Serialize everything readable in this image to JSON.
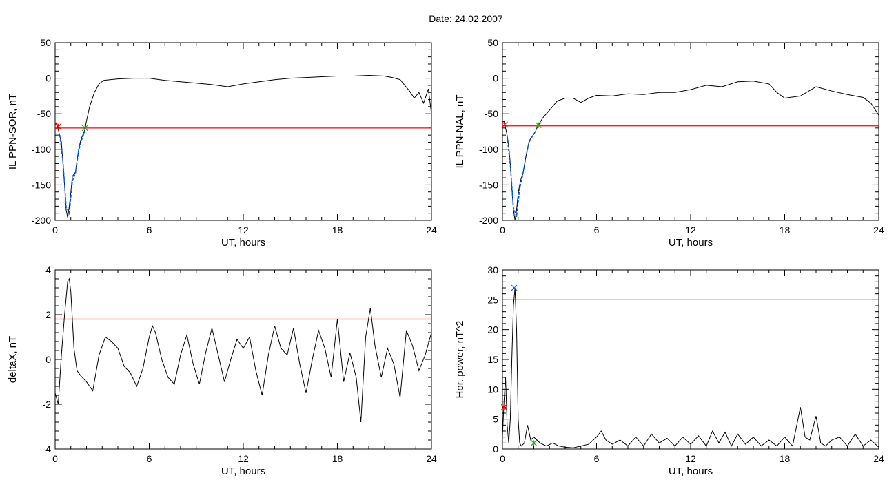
{
  "header": {
    "date_label": "Date:  24.02.2007"
  },
  "colors": {
    "line": "#000000",
    "threshold": "#ff0000",
    "fit": "#0055ff",
    "start_marker": "#ff0000",
    "end_marker": "#22aa22",
    "peak_marker": "#2255ff"
  },
  "chart_data": [
    {
      "type": "line",
      "ylabel": "IL PPN-SOR, nT",
      "xlabel": "UT, hours",
      "xlim": [
        0,
        24
      ],
      "ylim": [
        -200,
        50
      ],
      "xticks": [
        0,
        6,
        12,
        18,
        24
      ],
      "yticks": [
        -200,
        -150,
        -100,
        -50,
        0,
        50
      ],
      "threshold": -70,
      "series": [
        {
          "x": [
            0,
            0.1,
            0.2,
            0.3,
            0.4,
            0.5,
            0.6,
            0.7,
            0.8,
            0.9,
            1.0,
            1.1,
            1.2,
            1.3,
            1.4,
            1.5,
            1.6,
            1.7,
            1.8,
            1.9,
            2.0,
            2.2,
            2.5,
            2.8,
            3.1,
            3.5,
            4,
            5,
            6,
            7,
            8,
            9,
            10,
            11,
            12,
            13,
            14,
            15,
            16,
            17,
            18,
            19,
            20,
            21,
            21.5,
            22,
            22.3,
            22.6,
            22.9,
            23.2,
            23.5,
            23.8,
            24
          ],
          "y": [
            -66,
            -62,
            -72,
            -82,
            -90,
            -120,
            -150,
            -185,
            -196,
            -180,
            -160,
            -138,
            -135,
            -132,
            -115,
            -100,
            -90,
            -83,
            -78,
            -72,
            -60,
            -40,
            -20,
            -8,
            -3,
            -2,
            -1,
            0,
            0,
            -3,
            -5,
            -7,
            -9,
            -12,
            -8,
            -5,
            -2,
            0,
            1,
            2,
            3,
            3,
            4,
            3,
            1,
            -2,
            -10,
            -18,
            -28,
            -20,
            -35,
            -15,
            -50
          ]
        },
        {
          "role": "fit",
          "x": [
            0.3,
            0.5,
            0.7,
            0.9,
            1.1,
            1.3,
            1.5,
            1.7,
            1.9
          ],
          "y": [
            -80,
            -118,
            -180,
            -190,
            -145,
            -133,
            -102,
            -86,
            -74
          ]
        }
      ],
      "markers": [
        {
          "x": 0.2,
          "y": -68,
          "kind": "start"
        },
        {
          "x": 1.9,
          "y": -70,
          "kind": "end"
        }
      ]
    },
    {
      "type": "line",
      "ylabel": "IL PPN-NAL, nT",
      "xlabel": "UT, hours",
      "xlim": [
        0,
        24
      ],
      "ylim": [
        -200,
        50
      ],
      "xticks": [
        0,
        6,
        12,
        18,
        24
      ],
      "yticks": [
        -200,
        -150,
        -100,
        -50,
        0,
        50
      ],
      "threshold": -67,
      "series": [
        {
          "x": [
            0,
            0.1,
            0.2,
            0.3,
            0.4,
            0.5,
            0.6,
            0.7,
            0.8,
            0.9,
            1.0,
            1.1,
            1.2,
            1.3,
            1.5,
            1.7,
            1.9,
            2.1,
            2.3,
            2.6,
            3,
            3.5,
            4,
            4.5,
            5,
            5.5,
            6,
            7,
            8,
            9,
            10,
            11,
            12,
            13,
            14,
            15,
            16,
            17,
            17.5,
            18,
            19,
            20,
            21,
            22,
            23,
            23.5,
            24
          ],
          "y": [
            -62,
            -60,
            -70,
            -80,
            -95,
            -120,
            -155,
            -185,
            -200,
            -185,
            -162,
            -150,
            -140,
            -135,
            -110,
            -88,
            -82,
            -75,
            -65,
            -55,
            -45,
            -32,
            -28,
            -28,
            -34,
            -28,
            -24,
            -25,
            -22,
            -23,
            -20,
            -20,
            -16,
            -10,
            -12,
            -5,
            -4,
            -8,
            -20,
            -28,
            -25,
            -12,
            -18,
            -23,
            -27,
            -35,
            -52
          ]
        },
        {
          "role": "fit",
          "x": [
            0.3,
            0.5,
            0.7,
            0.9,
            1.1,
            1.3,
            1.5,
            1.7,
            1.9,
            2.1
          ],
          "y": [
            -82,
            -122,
            -182,
            -195,
            -155,
            -135,
            -110,
            -90,
            -82,
            -75
          ]
        }
      ],
      "markers": [
        {
          "x": 0.15,
          "y": -65,
          "kind": "start"
        },
        {
          "x": 2.3,
          "y": -66,
          "kind": "end"
        }
      ]
    },
    {
      "type": "line",
      "ylabel": "deltaX, nT",
      "xlabel": "UT, hours",
      "xlim": [
        0,
        24
      ],
      "ylim": [
        -4,
        4
      ],
      "xticks": [
        0,
        6,
        12,
        18,
        24
      ],
      "yticks": [
        -4,
        -2,
        0,
        2,
        4
      ],
      "threshold": 1.8,
      "series": [
        {
          "x": [
            0,
            0.2,
            0.4,
            0.6,
            0.8,
            0.9,
            1.0,
            1.2,
            1.4,
            1.6,
            2.0,
            2.4,
            2.8,
            3.2,
            3.6,
            4.0,
            4.4,
            4.8,
            5.2,
            5.6,
            6.0,
            6.2,
            6.4,
            6.8,
            7.2,
            7.6,
            8.0,
            8.4,
            8.8,
            9.2,
            9.6,
            10.0,
            10.4,
            10.8,
            11.2,
            11.6,
            12.0,
            12.4,
            12.8,
            13.2,
            13.6,
            14.0,
            14.4,
            14.8,
            15.2,
            15.6,
            16.0,
            16.4,
            16.8,
            17.2,
            17.6,
            18.0,
            18.4,
            18.8,
            19.2,
            19.5,
            19.8,
            20.1,
            20.4,
            20.8,
            21.2,
            21.6,
            22.0,
            22.4,
            22.8,
            23.2,
            23.6,
            24
          ],
          "y": [
            -1.5,
            -2.0,
            0.2,
            2.0,
            3.5,
            3.6,
            3.0,
            0.5,
            -0.5,
            -0.7,
            -1.0,
            -1.4,
            0.2,
            1.0,
            0.8,
            0.5,
            -0.3,
            -0.6,
            -1.2,
            -0.4,
            1.0,
            1.5,
            1.2,
            0.0,
            -0.8,
            -1.1,
            0.2,
            1.1,
            -0.2,
            -1.1,
            0.3,
            1.4,
            0.2,
            -1.0,
            0.0,
            0.9,
            0.5,
            1.0,
            -0.5,
            -1.6,
            0.2,
            1.5,
            0.5,
            0.2,
            1.4,
            -0.2,
            -1.5,
            0.0,
            1.3,
            0.5,
            -0.8,
            1.8,
            -1.0,
            0.3,
            -0.8,
            -2.8,
            1.0,
            2.3,
            0.6,
            -0.8,
            0.5,
            -0.2,
            -1.7,
            1.3,
            0.6,
            -0.5,
            0.2,
            1.2
          ]
        }
      ]
    },
    {
      "type": "line",
      "ylabel": "Hor. power, nT^2",
      "xlabel": "UT, hours",
      "xlim": [
        0,
        24
      ],
      "ylim": [
        0,
        30
      ],
      "xticks": [
        0,
        6,
        12,
        18,
        24
      ],
      "yticks": [
        0,
        5,
        10,
        15,
        20,
        25,
        30
      ],
      "threshold": 25,
      "series": [
        {
          "x": [
            0,
            0.1,
            0.2,
            0.3,
            0.4,
            0.5,
            0.6,
            0.7,
            0.8,
            0.9,
            1.0,
            1.1,
            1.2,
            1.4,
            1.6,
            1.8,
            2.0,
            2.4,
            2.8,
            3.2,
            3.6,
            4.0,
            4.5,
            5.0,
            5.5,
            6.0,
            6.3,
            6.6,
            7.0,
            7.5,
            8.0,
            8.5,
            9.0,
            9.5,
            10.0,
            10.5,
            11.0,
            11.5,
            12.0,
            12.5,
            13.0,
            13.4,
            13.8,
            14.2,
            14.6,
            15.0,
            15.5,
            16.0,
            16.5,
            17.0,
            17.5,
            18.0,
            18.5,
            19.0,
            19.3,
            19.6,
            20.0,
            20.3,
            20.6,
            21.0,
            21.5,
            22.0,
            22.5,
            23.0,
            23.5,
            24
          ],
          "y": [
            2,
            8,
            12,
            4,
            1,
            5,
            15,
            24,
            27,
            20,
            5,
            1,
            0.5,
            1,
            4,
            1.5,
            2,
            1,
            0.5,
            1,
            0.5,
            0.3,
            0.2,
            0.5,
            0.8,
            2,
            3,
            1.5,
            0.8,
            1.5,
            0.5,
            2,
            0.5,
            2.5,
            1,
            1.8,
            0.5,
            2,
            0.8,
            2.2,
            0.5,
            3,
            1,
            2.8,
            0.5,
            2.5,
            0.8,
            2,
            0.5,
            1.5,
            0.5,
            2,
            0.5,
            7,
            2,
            1.5,
            5.5,
            1,
            0.5,
            1.5,
            2,
            0.5,
            2.5,
            0.5,
            1.5,
            0.3
          ]
        }
      ],
      "markers": [
        {
          "x": 0.1,
          "y": 7,
          "kind": "start"
        },
        {
          "x": 0.75,
          "y": 27,
          "kind": "peak"
        },
        {
          "x": 2.0,
          "y": 1,
          "kind": "end"
        }
      ]
    }
  ]
}
